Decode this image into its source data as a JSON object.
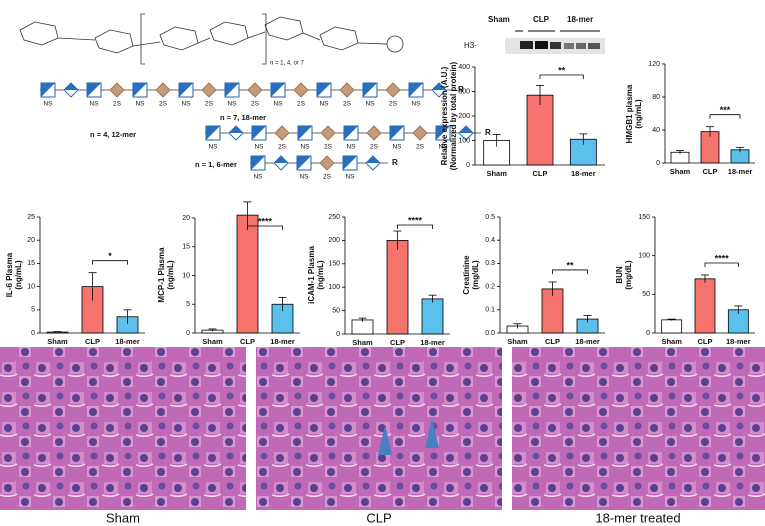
{
  "structure": {
    "repeat_note": "n = 1, 4, or 7",
    "chains": [
      {
        "label": "n = 7, 18-mer",
        "squares": [
          "NS",
          "NS",
          "NS",
          "NS",
          "NS",
          "NS",
          "NS",
          "NS",
          "NS"
        ],
        "diamonds": [
          null,
          "2S",
          "2S",
          "2S",
          "2S",
          "2S",
          "2S",
          "2S",
          null
        ],
        "end": "R"
      },
      {
        "label": "n = 4, 12-mer",
        "squares": [
          "NS",
          "NS",
          "NS",
          "NS",
          "NS",
          "NS"
        ],
        "diamonds": [
          null,
          "2S",
          "2S",
          "2S",
          "2S",
          null
        ],
        "end": "R"
      },
      {
        "label": "n = 1, 6-mer",
        "squares": [
          "NS",
          "NS",
          "NS"
        ],
        "diamonds": [
          null,
          "2S",
          null
        ],
        "end": "R"
      }
    ]
  },
  "blot": {
    "groups": [
      "Sham",
      "CLP",
      "18-mer"
    ],
    "band_label": "H3-"
  },
  "chart_data": [
    {
      "type": "bar",
      "ylabel": [
        "Relative expression (A.U.)",
        "(Normalized by total protein)"
      ],
      "categories": [
        "Sham",
        "CLP",
        "18-mer"
      ],
      "values": [
        100,
        285,
        105
      ],
      "errors": [
        25,
        40,
        22
      ],
      "colors": [
        "#ffffff",
        "#f4736d",
        "#5bc0eb"
      ],
      "ylim": [
        0,
        400
      ],
      "yticks": [
        0,
        100,
        200,
        300,
        400
      ],
      "annotation": "**"
    },
    {
      "type": "bar",
      "ylabel": [
        "HMGB1 plasma",
        "(ng/mL)"
      ],
      "categories": [
        "Sham",
        "CLP",
        "18-mer"
      ],
      "values": [
        13,
        38,
        16
      ],
      "errors": [
        2,
        6,
        3
      ],
      "colors": [
        "#ffffff",
        "#f4736d",
        "#5bc0eb"
      ],
      "ylim": [
        0,
        120
      ],
      "yticks": [
        0,
        40,
        80,
        120
      ],
      "annotation": "***"
    },
    {
      "type": "bar",
      "ylabel": [
        "IL-6 Plasma",
        "(ng/mL)"
      ],
      "categories": [
        "Sham",
        "CLP",
        "18-mer"
      ],
      "values": [
        0.2,
        10,
        3.5
      ],
      "errors": [
        0.1,
        3,
        1.5
      ],
      "colors": [
        "#ffffff",
        "#f4736d",
        "#5bc0eb"
      ],
      "ylim": [
        0,
        25
      ],
      "yticks": [
        0,
        5,
        10,
        15,
        20,
        25
      ],
      "annotation": "*"
    },
    {
      "type": "bar",
      "ylabel": [
        "MCP-1 Plasma",
        "(ng/mL)"
      ],
      "categories": [
        "Sham",
        "CLP",
        "18-mer"
      ],
      "values": [
        0.5,
        20.5,
        5
      ],
      "errors": [
        0.2,
        2.3,
        1.2
      ],
      "colors": [
        "#ffffff",
        "#f4736d",
        "#5bc0eb"
      ],
      "ylim": [
        0,
        20
      ],
      "yticks": [
        0,
        5,
        10,
        15,
        20
      ],
      "annotation": "****"
    },
    {
      "type": "bar",
      "ylabel": [
        "iCAM-1 Plasma",
        "(ng/mL)"
      ],
      "categories": [
        "Sham",
        "CLP",
        "18-mer"
      ],
      "values": [
        30,
        200,
        75
      ],
      "errors": [
        4,
        20,
        8
      ],
      "colors": [
        "#ffffff",
        "#f4736d",
        "#5bc0eb"
      ],
      "ylim": [
        0,
        250
      ],
      "yticks": [
        0,
        50,
        100,
        150,
        200,
        250
      ],
      "annotation": "****"
    },
    {
      "type": "bar",
      "ylabel": [
        "Creatinine",
        "(mg/dL)"
      ],
      "categories": [
        "Sham",
        "CLP",
        "18-mer"
      ],
      "values": [
        0.03,
        0.19,
        0.06
      ],
      "errors": [
        0.01,
        0.03,
        0.015
      ],
      "colors": [
        "#ffffff",
        "#f4736d",
        "#5bc0eb"
      ],
      "ylim": [
        0,
        0.5
      ],
      "yticks": [
        {
          "value": 0,
          "label": "0.0"
        },
        0.1,
        0.2,
        0.3,
        0.4,
        0.5
      ],
      "annotation": "**"
    },
    {
      "type": "bar",
      "ylabel": [
        "BUN",
        "(mg/dL)"
      ],
      "categories": [
        "Sham",
        "CLP",
        "18-mer"
      ],
      "values": [
        17,
        70,
        30
      ],
      "errors": [
        1,
        5,
        5
      ],
      "colors": [
        "#ffffff",
        "#f4736d",
        "#5bc0eb"
      ],
      "ylim": [
        0,
        150
      ],
      "yticks": [
        0,
        50,
        100,
        150
      ],
      "annotation": "****"
    }
  ],
  "histology": {
    "captions": [
      "Sham",
      "CLP",
      "18-mer treated"
    ]
  }
}
